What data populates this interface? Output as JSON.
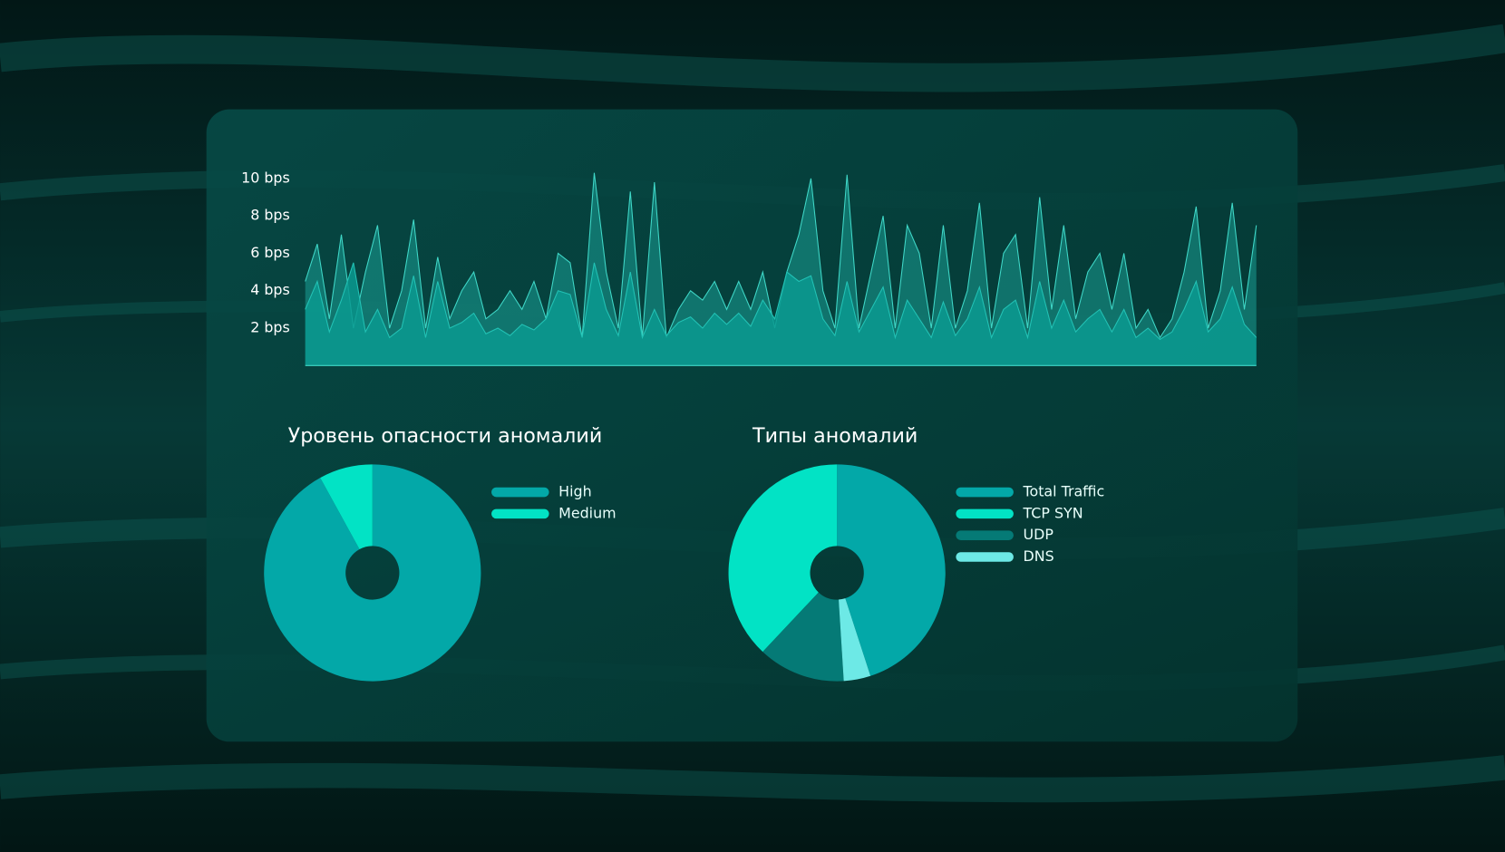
{
  "chart_data": [
    {
      "type": "area",
      "ylim": [
        0,
        10.5
      ],
      "yticks": [
        {
          "value": 2,
          "label": "2 bps"
        },
        {
          "value": 4,
          "label": "4 bps"
        },
        {
          "value": 6,
          "label": "6 bps"
        },
        {
          "value": 8,
          "label": "8 bps"
        },
        {
          "value": 10,
          "label": "10 bps"
        }
      ],
      "series": [
        {
          "color": "#1fb3a8",
          "values": [
            4.5,
            6.5,
            2.5,
            7,
            2,
            5,
            7.5,
            2,
            4,
            7.8,
            2,
            5.8,
            2.5,
            4,
            5,
            2.5,
            3,
            4,
            3,
            4.5,
            2.5,
            6,
            5.5,
            1.5,
            10.3,
            5,
            2,
            9.3,
            1.5,
            9.8,
            1.5,
            3,
            4,
            3.5,
            4.5,
            3,
            4.5,
            3,
            5,
            2,
            5,
            7,
            10,
            4,
            2,
            10.2,
            2,
            5,
            8,
            2,
            7.5,
            6,
            2,
            7.5,
            2,
            4,
            8.7,
            2,
            6,
            7,
            2,
            9,
            3,
            7.5,
            2.5,
            5,
            6,
            3,
            6,
            2,
            3,
            1.5,
            2.5,
            5,
            8.5,
            2,
            4,
            8.7,
            3,
            7.5
          ]
        },
        {
          "color": "#0b9a91",
          "values": [
            3,
            4.5,
            1.8,
            3.5,
            5.5,
            1.8,
            3,
            1.5,
            2,
            4.8,
            1.5,
            4.5,
            2,
            2.3,
            2.8,
            1.7,
            2,
            1.6,
            2.2,
            1.9,
            2.5,
            4,
            3.8,
            1.5,
            5.5,
            3,
            1.6,
            5,
            1.5,
            3,
            1.6,
            2.3,
            2.6,
            2,
            2.8,
            2.2,
            2.8,
            2.1,
            3.5,
            2.5,
            5,
            4.5,
            4.8,
            2.5,
            1.6,
            4.5,
            1.8,
            3,
            4.2,
            1.5,
            3.5,
            2.5,
            1.5,
            3.4,
            1.6,
            2.5,
            4.2,
            1.5,
            3,
            3.5,
            1.5,
            4.5,
            2,
            3.5,
            1.8,
            2.5,
            3,
            1.8,
            3,
            1.5,
            2,
            1.4,
            1.8,
            3,
            4.5,
            1.8,
            2.5,
            4.2,
            2.2,
            1.5
          ]
        }
      ]
    },
    {
      "type": "pie",
      "title": "Уровень опасности аномалий",
      "categories": [
        "High",
        "Medium"
      ],
      "values": [
        92,
        8
      ],
      "colors": [
        "#03a8a8",
        "#02e3c5"
      ]
    },
    {
      "type": "pie",
      "title": "Типы аномалий",
      "categories": [
        "Total Traffic",
        "TCP SYN",
        "UDP",
        "DNS"
      ],
      "values": [
        45,
        38,
        13,
        4
      ],
      "colors": [
        "#03a8a8",
        "#02e3c5",
        "#057a76",
        "#6de9e6"
      ]
    }
  ]
}
